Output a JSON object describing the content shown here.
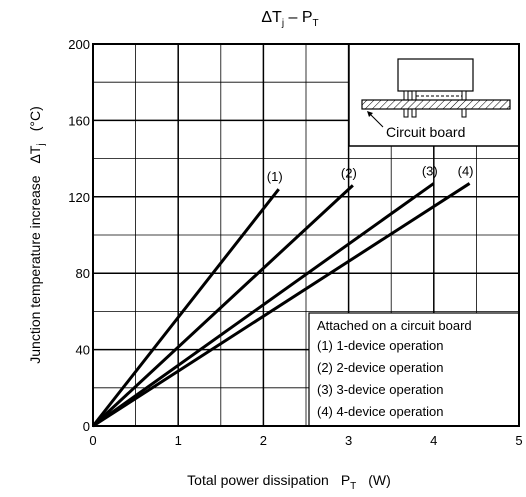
{
  "chart_data": {
    "type": "line",
    "title": {
      "main": "ΔT",
      "main_sub": "j",
      "dash": " – P",
      "dash_sub": "T"
    },
    "xlabel": {
      "text": "Total power dissipation",
      "symbol": "P",
      "symbol_sub": "T",
      "unit": "(W)"
    },
    "ylabel": {
      "text": "Junction temperature increase",
      "symbol": "ΔT",
      "symbol_sub": "j",
      "unit": "(°C)"
    },
    "xlim": [
      0,
      5
    ],
    "ylim": [
      0,
      200
    ],
    "x_major_ticks": [
      "0",
      "1",
      "2",
      "3",
      "4",
      "5"
    ],
    "y_major_ticks": [
      "0",
      "40",
      "80",
      "120",
      "160",
      "200"
    ],
    "grid": true,
    "x_minor_step": 0.5,
    "y_minor_step": 20,
    "series": [
      {
        "name": "(1)",
        "x": [
          0,
          2.18
        ],
        "y": [
          0,
          124
        ]
      },
      {
        "name": "(2)",
        "x": [
          0,
          3.05
        ],
        "y": [
          0,
          126
        ]
      },
      {
        "name": "(3)",
        "x": [
          0,
          4.0
        ],
        "y": [
          0,
          127
        ]
      },
      {
        "name": "(4)",
        "x": [
          0,
          4.42
        ],
        "y": [
          0,
          127
        ]
      }
    ],
    "legend": {
      "title": "Attached on a circuit board",
      "items": [
        "(1) 1-device operation",
        "(2) 2-device operation",
        "(3) 3-device operation",
        "(4) 4-device operation"
      ],
      "placement": "bottom-right"
    },
    "inset": {
      "label": "Circuit board",
      "placement": "top-right"
    }
  }
}
